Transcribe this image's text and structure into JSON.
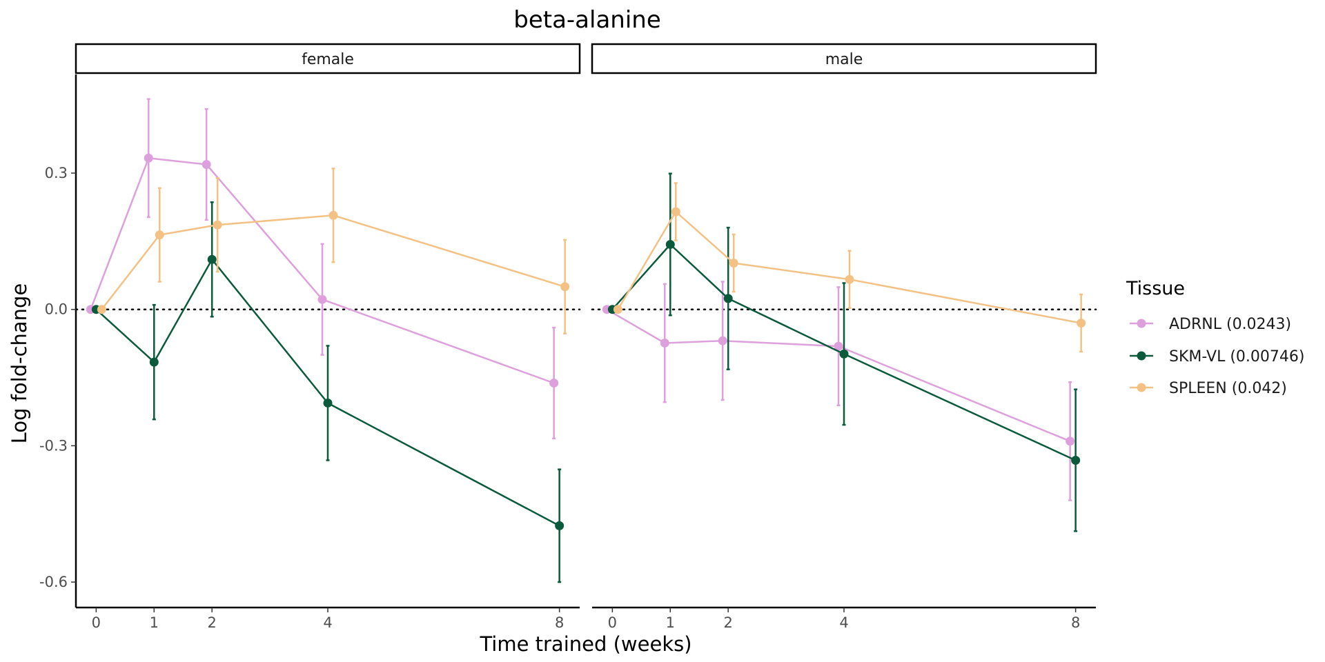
{
  "chart_data": {
    "type": "line",
    "title": "beta-alanine",
    "xlabel": "Time trained (weeks)",
    "ylabel": "Log fold-change",
    "x_ticks": [
      0,
      1,
      2,
      4,
      8
    ],
    "y_ticks": [
      0.3,
      0.0,
      -0.3,
      -0.6
    ],
    "y_tick_labels": [
      "0.3",
      "0.0",
      "-0.3",
      "-0.6"
    ],
    "ylim": [
      -0.656,
      0.517
    ],
    "xlim": [
      -0.35,
      8.35
    ],
    "reference_line": 0,
    "legend": {
      "title": "Tissue",
      "position": "right"
    },
    "colors": {
      "ADRNL": "#DDA0DD",
      "SKM-VL": "#0B5A3C",
      "SPLEEN": "#F4C184"
    },
    "series_names": [
      "ADRNL (0.0243)",
      "SKM-VL (0.00746)",
      "SPLEEN (0.042)"
    ],
    "panels": [
      {
        "name": "female",
        "series": [
          {
            "name": "ADRNL (0.0243)",
            "x": [
              0,
              1,
              2,
              4,
              8
            ],
            "y": [
              0.0,
              0.333,
              0.319,
              0.022,
              -0.162
            ],
            "err": [
              0,
              0.13,
              0.122,
              0.122,
              0.122
            ]
          },
          {
            "name": "SKM-VL (0.00746)",
            "x": [
              0,
              1,
              2,
              4,
              8
            ],
            "y": [
              0.0,
              -0.116,
              0.11,
              -0.206,
              -0.476
            ],
            "err": [
              0,
              0.126,
              0.126,
              0.126,
              0.124
            ]
          },
          {
            "name": "SPLEEN (0.042)",
            "x": [
              0,
              1,
              2,
              4,
              8
            ],
            "y": [
              0.0,
              0.164,
              0.186,
              0.207,
              0.05
            ],
            "err": [
              0,
              0.103,
              0.103,
              0.103,
              0.103
            ]
          }
        ]
      },
      {
        "name": "male",
        "series": [
          {
            "name": "ADRNL (0.0243)",
            "x": [
              0,
              1,
              2,
              4,
              8
            ],
            "y": [
              0.0,
              -0.074,
              -0.069,
              -0.081,
              -0.29
            ],
            "err": [
              0,
              0.13,
              0.13,
              0.13,
              0.13
            ]
          },
          {
            "name": "SKM-VL (0.00746)",
            "x": [
              0,
              1,
              2,
              4,
              8
            ],
            "y": [
              0.0,
              0.143,
              0.024,
              -0.098,
              -0.332
            ],
            "err": [
              0,
              0.156,
              0.156,
              0.156,
              0.156
            ]
          },
          {
            "name": "SPLEEN (0.042)",
            "x": [
              0,
              1,
              2,
              4,
              8
            ],
            "y": [
              0.0,
              0.215,
              0.102,
              0.066,
              -0.03
            ],
            "err": [
              0,
              0.063,
              0.063,
              0.063,
              0.063
            ]
          }
        ]
      }
    ]
  }
}
